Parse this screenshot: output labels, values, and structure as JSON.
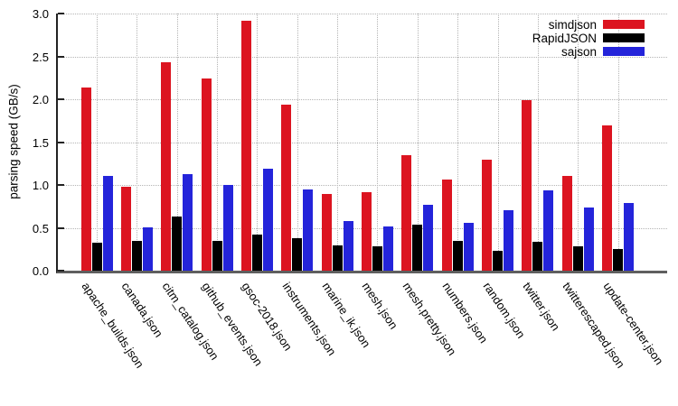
{
  "chart_data": {
    "type": "bar",
    "title": "",
    "ylabel": "parsing speed (GB/s)",
    "xlabel": "",
    "ylim": [
      0,
      3.0
    ],
    "yticks": [
      0.0,
      0.5,
      1.0,
      1.5,
      2.0,
      2.5,
      3.0
    ],
    "grid": "dotted horizontal lines at y ticks, dotted vertical lines at category centers",
    "legend_position": "top-right inside plot, labels left of color swatches",
    "categories": [
      "apache_builds.json",
      "canada.json",
      "citm_catalog.json",
      "github_events.json",
      "gsoc-2018.json",
      "instruments.json",
      "marine_ik.json",
      "mesh.json",
      "mesh.pretty.json",
      "numbers.json",
      "random.json",
      "twitter.json",
      "twitterescaped.json",
      "update-center.json"
    ],
    "series": [
      {
        "name": "simdjson",
        "color": "#dc1420",
        "values": [
          2.14,
          0.98,
          2.43,
          2.24,
          2.92,
          1.94,
          0.89,
          0.92,
          1.35,
          1.06,
          1.3,
          1.99,
          1.11,
          1.69
        ]
      },
      {
        "name": "RapidJSON",
        "color": "#000000",
        "values": [
          0.33,
          0.35,
          0.63,
          0.35,
          0.42,
          0.38,
          0.29,
          0.28,
          0.54,
          0.35,
          0.23,
          0.34,
          0.28,
          0.25
        ]
      },
      {
        "name": "sajson",
        "color": "#2424da",
        "values": [
          1.11,
          0.51,
          1.13,
          1.0,
          1.19,
          0.95,
          0.58,
          0.52,
          0.77,
          0.56,
          0.71,
          0.94,
          0.74,
          0.79
        ]
      }
    ]
  },
  "colors": {
    "background": "#ffffff",
    "grid": "#b4b4b4",
    "y_axis": "#222222",
    "x_axis": "#5f5f5f",
    "text": "#000000"
  }
}
